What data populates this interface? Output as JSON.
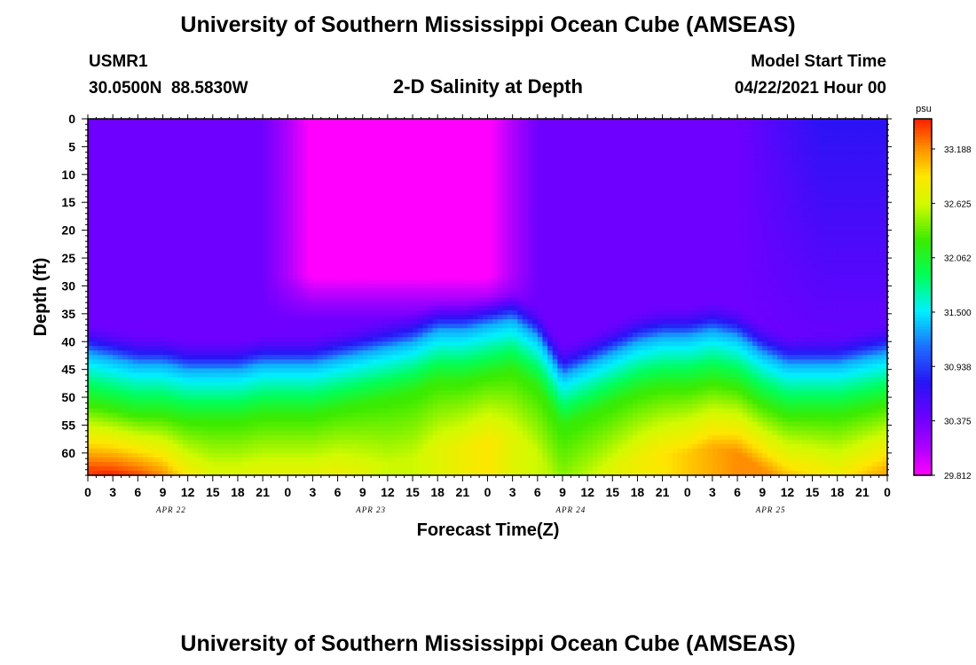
{
  "header": {
    "title": "University of Southern Mississippi Ocean Cube (AMSEAS)",
    "station_id": "USMR1",
    "station_coords": "30.0500N  88.5830W",
    "plot_title": "2-D Salinity at Depth",
    "model_start_label": "Model Start Time",
    "model_start_value": "04/22/2021 Hour 00"
  },
  "footer": {
    "title": "University of Southern Mississippi Ocean Cube (AMSEAS)"
  },
  "chart_data": {
    "type": "heatmap",
    "title": "2-D Salinity at Depth",
    "xlabel": "Forecast Time(Z)",
    "ylabel": "Depth (ft)",
    "x_tick_labels": [
      "0",
      "3",
      "6",
      "9",
      "12",
      "15",
      "18",
      "21",
      "0",
      "3",
      "6",
      "9",
      "12",
      "15",
      "18",
      "21",
      "0",
      "3",
      "6",
      "9",
      "12",
      "15",
      "18",
      "21",
      "0",
      "3",
      "6",
      "9",
      "12",
      "15",
      "18",
      "21",
      "0"
    ],
    "x_range_hours": [
      0,
      96
    ],
    "date_labels": [
      "APR 22",
      "APR 23",
      "APR 24",
      "APR 25"
    ],
    "y_tick_labels": [
      "0",
      "5",
      "10",
      "15",
      "20",
      "25",
      "30",
      "35",
      "40",
      "45",
      "50",
      "55",
      "60"
    ],
    "y_range_ft": [
      0,
      64
    ],
    "colorbar": {
      "unit": "psu",
      "tick_labels": [
        "33.188",
        "32.625",
        "32.062",
        "31.500",
        "30.938",
        "30.375",
        "29.812"
      ],
      "range": [
        29.812,
        33.5
      ]
    },
    "halocline_depth_ft": [
      [
        0,
        42
      ],
      [
        3,
        43
      ],
      [
        6,
        44
      ],
      [
        9,
        44
      ],
      [
        12,
        45
      ],
      [
        15,
        45
      ],
      [
        18,
        45
      ],
      [
        21,
        44
      ],
      [
        24,
        44
      ],
      [
        27,
        44
      ],
      [
        30,
        43
      ],
      [
        33,
        42
      ],
      [
        36,
        41
      ],
      [
        39,
        40
      ],
      [
        42,
        38
      ],
      [
        45,
        38
      ],
      [
        48,
        37
      ],
      [
        51,
        36
      ],
      [
        54,
        39
      ],
      [
        57,
        46
      ],
      [
        60,
        44
      ],
      [
        63,
        42
      ],
      [
        66,
        40
      ],
      [
        69,
        39
      ],
      [
        72,
        39
      ],
      [
        75,
        38
      ],
      [
        78,
        39
      ],
      [
        81,
        42
      ],
      [
        84,
        44
      ],
      [
        87,
        44
      ],
      [
        90,
        44
      ],
      [
        93,
        43
      ],
      [
        96,
        42
      ]
    ],
    "bottom_salinity_psu": [
      [
        0,
        33.4
      ],
      [
        3,
        33.5
      ],
      [
        6,
        33.5
      ],
      [
        9,
        33.3
      ],
      [
        12,
        33.0
      ],
      [
        15,
        32.8
      ],
      [
        18,
        32.8
      ],
      [
        21,
        32.8
      ],
      [
        24,
        32.8
      ],
      [
        27,
        32.8
      ],
      [
        30,
        32.8
      ],
      [
        33,
        32.7
      ],
      [
        36,
        32.6
      ],
      [
        39,
        32.6
      ],
      [
        42,
        32.7
      ],
      [
        45,
        32.8
      ],
      [
        48,
        32.9
      ],
      [
        51,
        32.7
      ],
      [
        54,
        32.6
      ],
      [
        57,
        32.5
      ],
      [
        60,
        32.6
      ],
      [
        63,
        32.7
      ],
      [
        66,
        32.8
      ],
      [
        69,
        32.9
      ],
      [
        72,
        33.0
      ],
      [
        75,
        33.1
      ],
      [
        78,
        33.2
      ],
      [
        81,
        33.2
      ],
      [
        84,
        33.1
      ],
      [
        87,
        33.0
      ],
      [
        90,
        32.9
      ],
      [
        93,
        33.0
      ],
      [
        96,
        33.1
      ]
    ],
    "upper_minimum_salinity": {
      "time_range_hours": [
        27,
        48
      ],
      "depth_range_ft": [
        0,
        32
      ],
      "value_psu": 29.812
    },
    "upper_layer_salinity_psu": 30.4,
    "legend": "colorbar right",
    "grid": false
  }
}
